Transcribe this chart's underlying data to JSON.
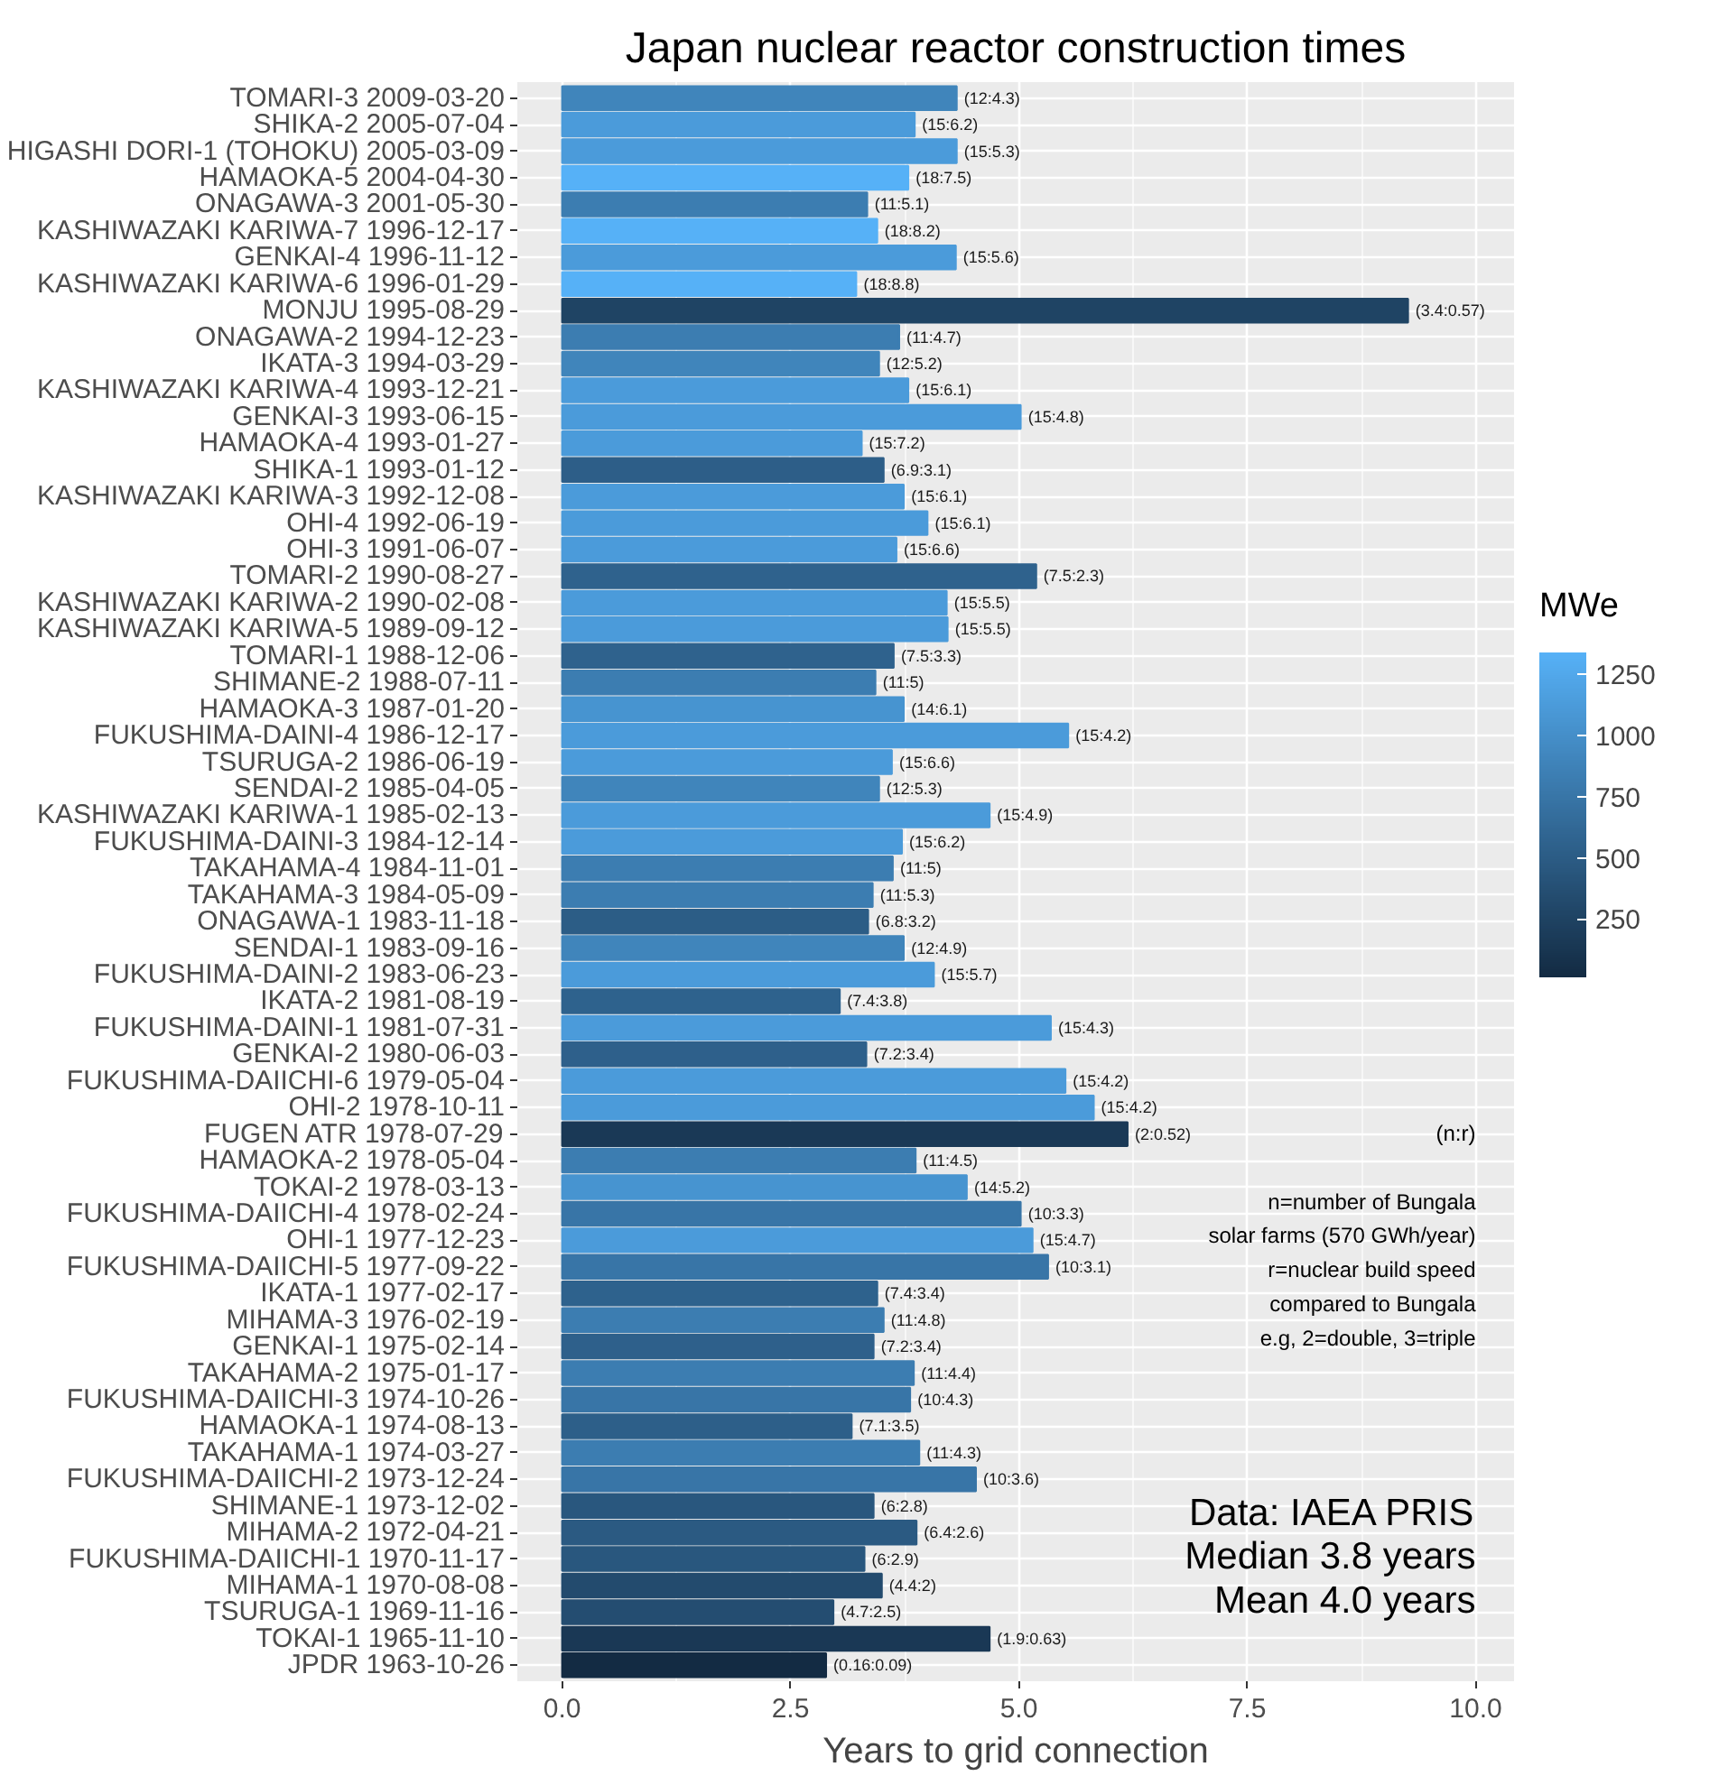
{
  "chart_data": {
    "type": "bar",
    "orientation": "horizontal",
    "title": "Japan nuclear reactor construction times",
    "xlabel": "Years to grid connection",
    "clabel": "MWe",
    "categories": [
      "TOMARI-3 2009-03-20",
      "SHIKA-2 2005-07-04",
      "HIGASHI DORI-1 (TOHOKU) 2005-03-09",
      "HAMAOKA-5 2004-04-30",
      "ONAGAWA-3 2001-05-30",
      "KASHIWAZAKI KARIWA-7 1996-12-17",
      "GENKAI-4 1996-11-12",
      "KASHIWAZAKI KARIWA-6 1996-01-29",
      "MONJU 1995-08-29",
      "ONAGAWA-2 1994-12-23",
      "IKATA-3 1994-03-29",
      "KASHIWAZAKI KARIWA-4 1993-12-21",
      "GENKAI-3 1993-06-15",
      "HAMAOKA-4 1993-01-27",
      "SHIKA-1 1993-01-12",
      "KASHIWAZAKI KARIWA-3 1992-12-08",
      "OHI-4 1992-06-19",
      "OHI-3 1991-06-07",
      "TOMARI-2 1990-08-27",
      "KASHIWAZAKI KARIWA-2 1990-02-08",
      "KASHIWAZAKI KARIWA-5 1989-09-12",
      "TOMARI-1 1988-12-06",
      "SHIMANE-2 1988-07-11",
      "HAMAOKA-3 1987-01-20",
      "FUKUSHIMA-DAINI-4 1986-12-17",
      "TSURUGA-2 1986-06-19",
      "SENDAI-2 1985-04-05",
      "KASHIWAZAKI KARIWA-1 1985-02-13",
      "FUKUSHIMA-DAINI-3 1984-12-14",
      "TAKAHAMA-4 1984-11-01",
      "TAKAHAMA-3 1984-05-09",
      "ONAGAWA-1 1983-11-18",
      "SENDAI-1 1983-09-16",
      "FUKUSHIMA-DAINI-2 1983-06-23",
      "IKATA-2 1981-08-19",
      "FUKUSHIMA-DAINI-1 1981-07-31",
      "GENKAI-2 1980-06-03",
      "FUKUSHIMA-DAIICHI-6 1979-05-04",
      "OHI-2 1978-10-11",
      "FUGEN ATR 1978-07-29",
      "HAMAOKA-2 1978-05-04",
      "TOKAI-2 1978-03-13",
      "FUKUSHIMA-DAIICHI-4 1978-02-24",
      "OHI-1 1977-12-23",
      "FUKUSHIMA-DAIICHI-5 1977-09-22",
      "IKATA-1 1977-02-17",
      "MIHAMA-3 1976-02-19",
      "GENKAI-1 1975-02-14",
      "TAKAHAMA-2 1975-01-17",
      "FUKUSHIMA-DAIICHI-3 1974-10-26",
      "HAMAOKA-1 1974-08-13",
      "TAKAHAMA-1 1974-03-27",
      "FUKUSHIMA-DAIICHI-2 1973-12-24",
      "SHIMANE-1 1973-12-02",
      "MIHAMA-2 1972-04-21",
      "FUKUSHIMA-DAIICHI-1 1970-11-17",
      "MIHAMA-1 1970-08-08",
      "TSURUGA-1 1969-11-16",
      "TOKAI-1 1965-11-10",
      "JPDR 1963-10-26"
    ],
    "values": [
      4.32,
      3.86,
      4.32,
      3.79,
      3.34,
      3.45,
      4.31,
      3.22,
      9.26,
      3.69,
      3.47,
      3.79,
      5.02,
      3.28,
      3.52,
      3.74,
      4.0,
      3.66,
      5.19,
      4.21,
      4.22,
      3.63,
      3.43,
      3.74,
      5.54,
      3.61,
      3.47,
      4.68,
      3.72,
      3.62,
      3.4,
      3.35,
      3.74,
      4.07,
      3.04,
      5.35,
      3.33,
      5.51,
      5.82,
      6.19,
      3.87,
      4.43,
      5.02,
      5.15,
      5.32,
      3.45,
      3.52,
      3.41,
      3.85,
      3.81,
      3.17,
      3.91,
      4.53,
      3.41,
      3.88,
      3.31,
      3.5,
      2.97,
      4.68,
      2.89
    ],
    "value_labels": [
      "(12:4.3)",
      "(15:6.2)",
      "(15:5.3)",
      "(18:7.5)",
      "(11:5.1)",
      "(18:8.2)",
      "(15:5.6)",
      "(18:8.8)",
      "(3.4:0.57)",
      "(11:4.7)",
      "(12:5.2)",
      "(15:6.1)",
      "(15:4.8)",
      "(15:7.2)",
      "(6.9:3.1)",
      "(15:6.1)",
      "(15:6.1)",
      "(15:6.6)",
      "(7.5:2.3)",
      "(15:5.5)",
      "(15:5.5)",
      "(7.5:3.3)",
      "(11:5)",
      "(14:6.1)",
      "(15:4.2)",
      "(15:6.6)",
      "(12:5.3)",
      "(15:4.9)",
      "(15:6.2)",
      "(11:5)",
      "(11:5.3)",
      "(6.8:3.2)",
      "(12:4.9)",
      "(15:5.7)",
      "(7.4:3.8)",
      "(15:4.3)",
      "(7.2:3.4)",
      "(15:4.2)",
      "(15:4.2)",
      "(2:0.52)",
      "(11:4.5)",
      "(14:5.2)",
      "(10:3.3)",
      "(15:4.7)",
      "(10:3.1)",
      "(7.4:3.4)",
      "(11:4.8)",
      "(7.2:3.4)",
      "(11:4.4)",
      "(10:4.3)",
      "(7.1:3.5)",
      "(11:4.3)",
      "(10:3.6)",
      "(6:2.8)",
      "(6.4:2.6)",
      "(6:2.9)",
      "(4.4:2)",
      "(4.7:2.5)",
      "(1.9:0.63)",
      "(0.16:0.09)"
    ],
    "colors": [
      "#4085BB",
      "#4B9BDA",
      "#4B9BDA",
      "#56B1F7",
      "#3C7DB1",
      "#56B1F7",
      "#4B9BDA",
      "#56B1F7",
      "#1F4464",
      "#3C7DB1",
      "#4085BB",
      "#4B9BDA",
      "#4B9BDA",
      "#4B9BDA",
      "#2D5E88",
      "#4B9BDA",
      "#4B9BDA",
      "#4B9BDA",
      "#2F628D",
      "#4B9BDA",
      "#4B9BDA",
      "#2F628D",
      "#3C7DB1",
      "#4794D0",
      "#4B9BDA",
      "#4B9BDA",
      "#4085BB",
      "#4B9BDA",
      "#4B9BDA",
      "#3C7DB1",
      "#3C7DB1",
      "#2C5D86",
      "#4085BB",
      "#4B9BDA",
      "#2E628D",
      "#4B9BDA",
      "#2E608B",
      "#4B9BDA",
      "#4B9BDA",
      "#1A3956",
      "#3C7DB1",
      "#4794D0",
      "#3875A7",
      "#4B9BDA",
      "#3875A7",
      "#2E628D",
      "#3C7DB1",
      "#2E608B",
      "#3C7DB1",
      "#3875A7",
      "#2D5F89",
      "#3C7DB1",
      "#3875A7",
      "#29577E",
      "#2B5A82",
      "#29577E",
      "#234B6E",
      "#244D71",
      "#1A3855",
      "#132B43"
    ],
    "clim": [
      12,
      1340
    ],
    "cticks": [
      250,
      500,
      750,
      1000,
      1250
    ],
    "xlim": [
      -0.49,
      10.42
    ],
    "xticks": [
      {
        "value": 0,
        "label": "0.0"
      },
      {
        "value": 2.5,
        "label": "2.5"
      },
      {
        "value": 5,
        "label": "5.0"
      },
      {
        "value": 7.5,
        "label": "7.5"
      },
      {
        "value": 10,
        "label": "10.0"
      }
    ],
    "grid": true,
    "annotations": [
      "(n:r)\n\nn=number of Bungala\nsolar farms (570 GWh/year)\nr=nuclear build speed\ncompared to Bungala\ne.g, 2=double, 3=triple",
      "Data: IAEA PRIS\nMedian 3.8 years\nMean 4.0 years"
    ]
  }
}
